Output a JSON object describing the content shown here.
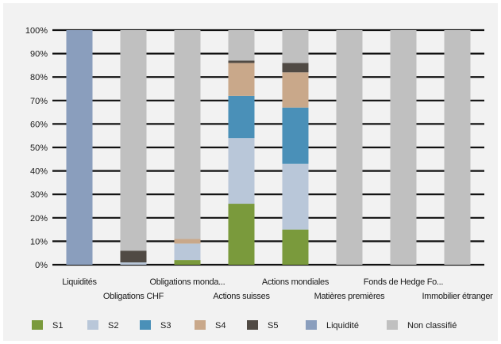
{
  "chart_data": {
    "type": "bar",
    "stacked": true,
    "categories": [
      "Liquidités",
      "Obligations CHF",
      "Obligations monda...",
      "Actions suisses",
      "Actions mondiales",
      "Matières premières",
      "Fonds de Hedge Fo...",
      "Immobilier étranger"
    ],
    "series": [
      {
        "name": "S1",
        "color": "#7a9a3c",
        "values": [
          0,
          0,
          2,
          26,
          15,
          0,
          0,
          0
        ]
      },
      {
        "name": "S2",
        "color": "#b9c7d9",
        "values": [
          0,
          1,
          7,
          28,
          28,
          0,
          0,
          0
        ]
      },
      {
        "name": "S3",
        "color": "#4a90b8",
        "values": [
          0,
          0,
          0,
          18,
          24,
          0,
          0,
          0
        ]
      },
      {
        "name": "S4",
        "color": "#c9a88a",
        "values": [
          0,
          0,
          2,
          14,
          15,
          0,
          0,
          0
        ]
      },
      {
        "name": "S5",
        "color": "#504a44",
        "values": [
          0,
          5,
          0,
          1,
          4,
          0,
          0,
          0
        ]
      },
      {
        "name": "Liquidité",
        "color": "#8a9ebd",
        "values": [
          100,
          0,
          0,
          0,
          0,
          0,
          0,
          0
        ]
      },
      {
        "name": "Non classifié",
        "color": "#c0c0c0",
        "values": [
          0,
          94,
          89,
          13,
          14,
          100,
          100,
          100
        ]
      }
    ],
    "yticks": [
      "0%",
      "10%",
      "20%",
      "30%",
      "40%",
      "50%",
      "60%",
      "70%",
      "80%",
      "90%",
      "100%"
    ],
    "ylim": [
      0,
      100
    ],
    "grid": true,
    "legend": "bottom"
  }
}
